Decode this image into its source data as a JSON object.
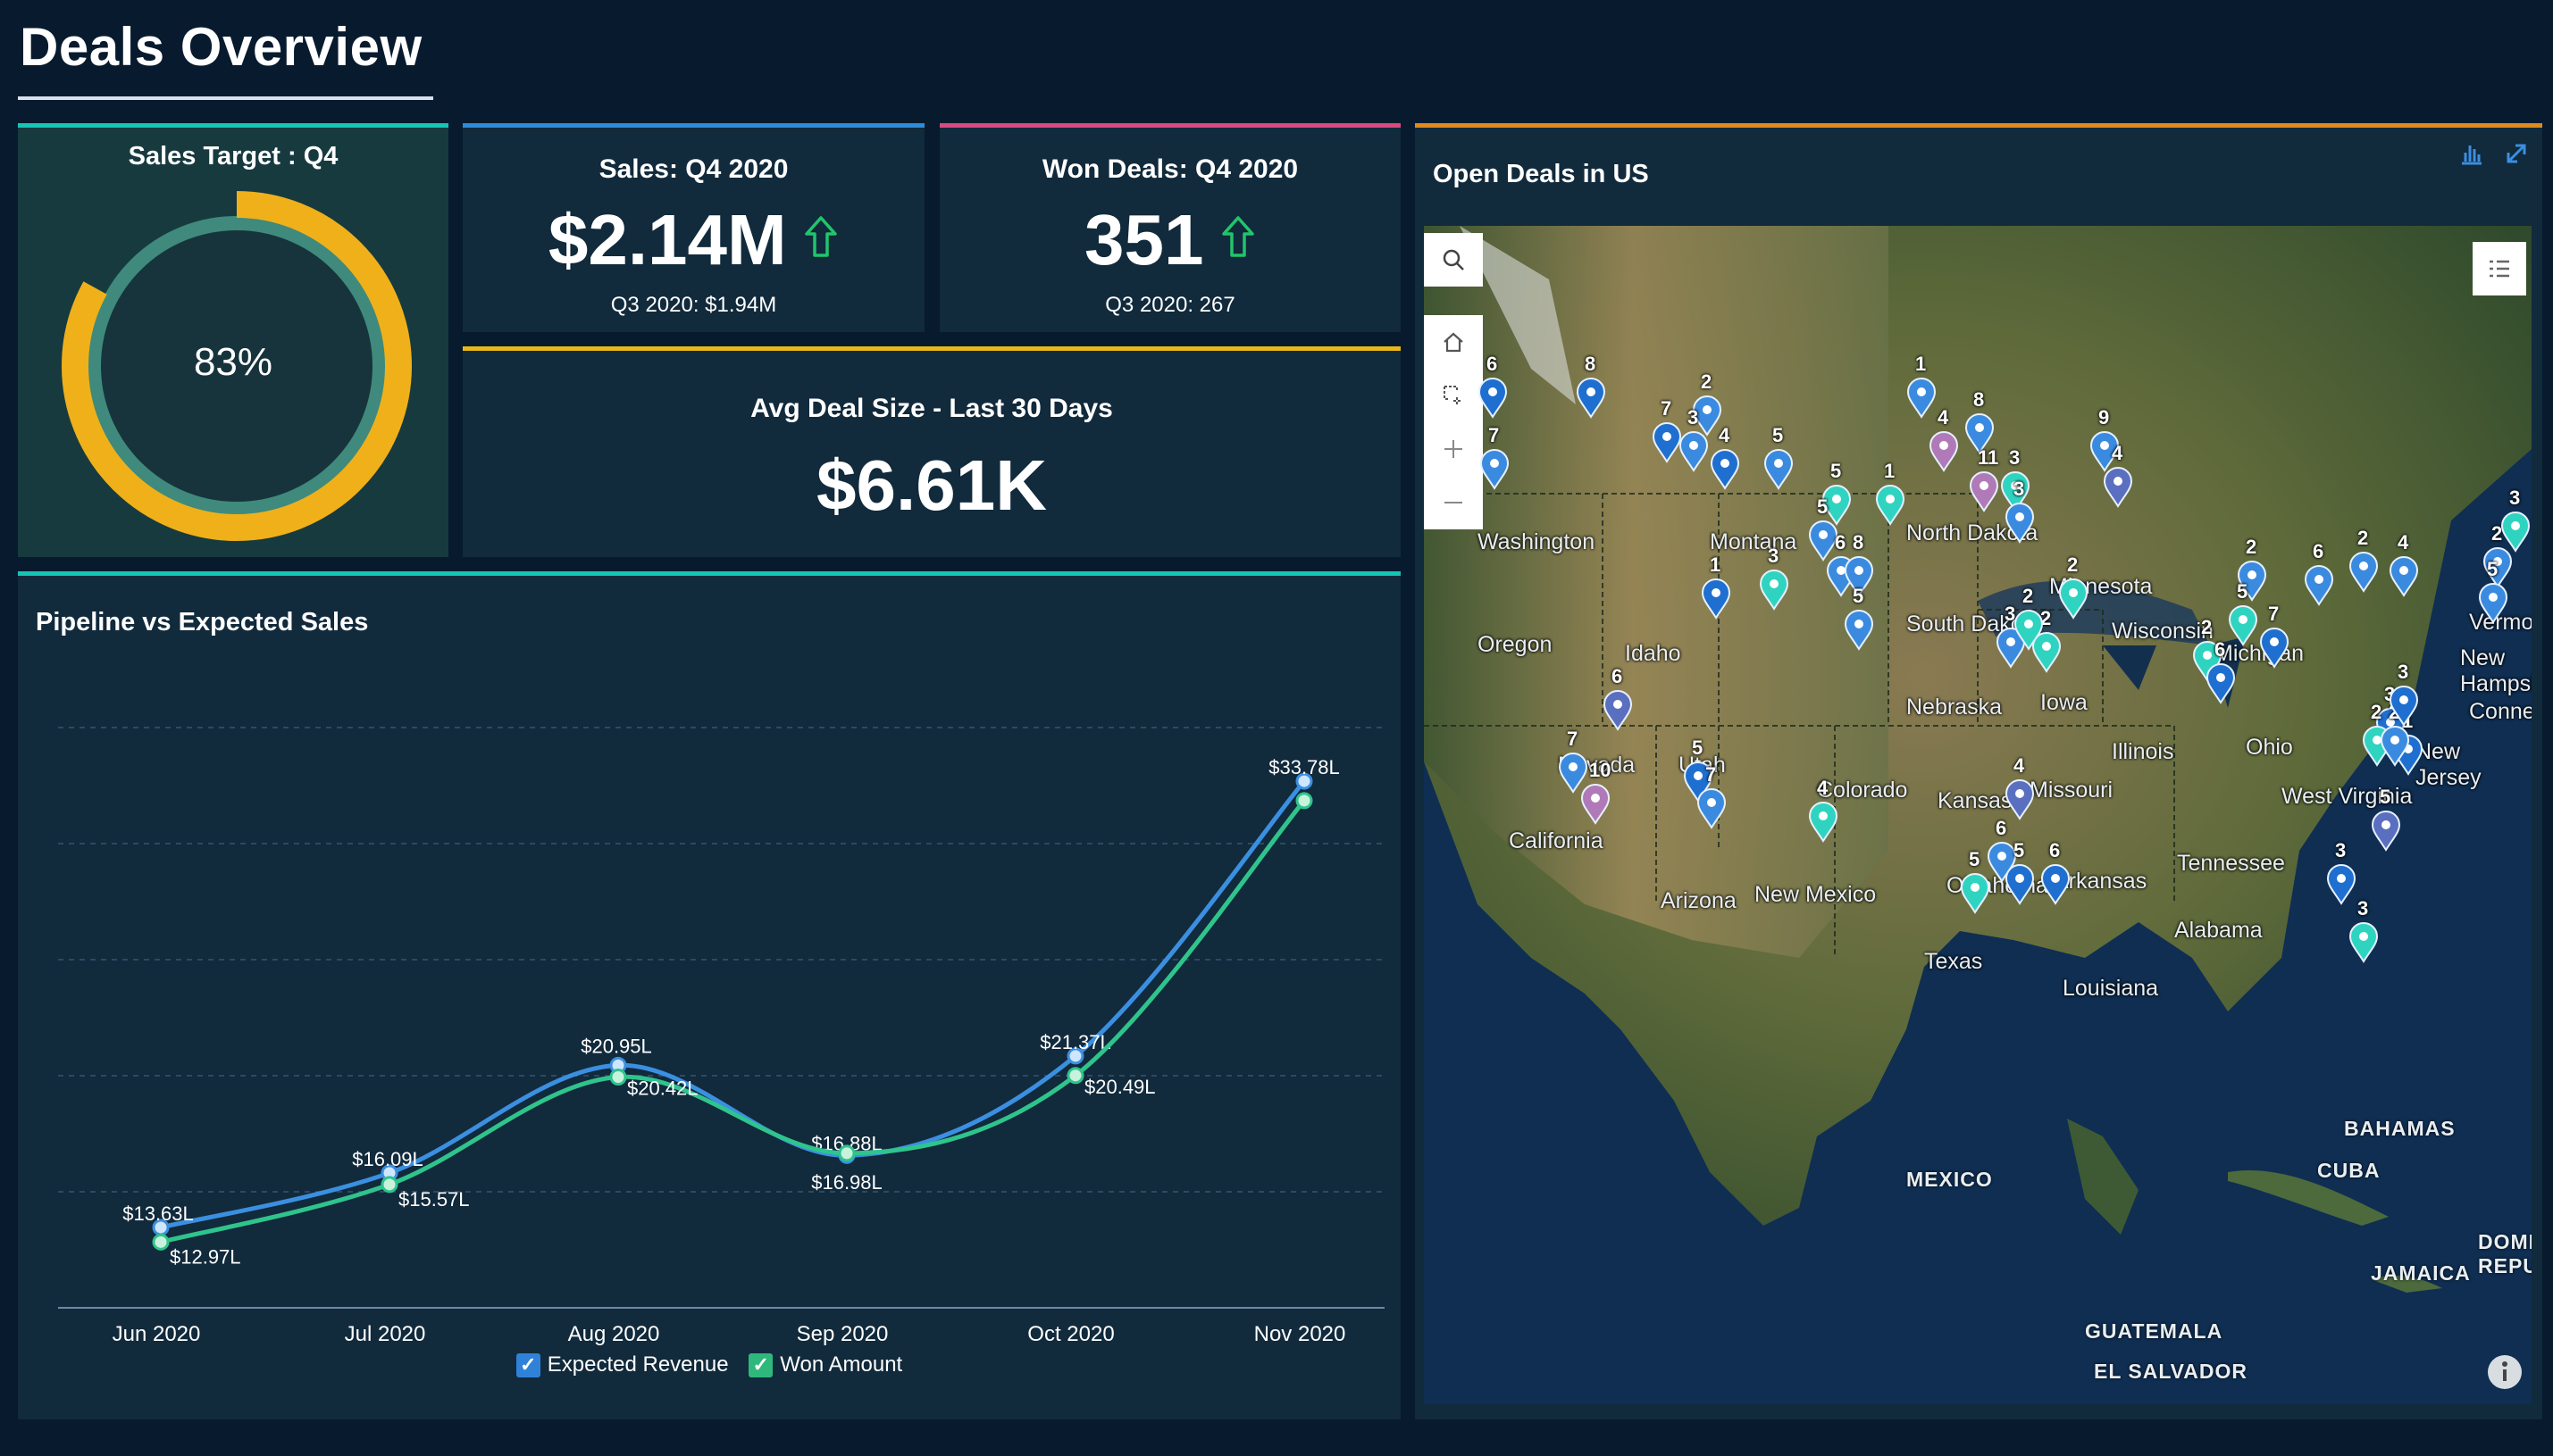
{
  "header": {
    "title": "Deals Overview"
  },
  "sales_target": {
    "title": "Sales Target : Q4",
    "percent_label": "83%",
    "percent": 0.83,
    "colors": {
      "arc": "#f0b01a",
      "ring": "#3f8a7c",
      "inner": "#17343c"
    }
  },
  "kpis": {
    "sales": {
      "title": "Sales: Q4 2020",
      "value": "$2.14M",
      "sub": "Q3 2020: $1.94M",
      "trend": "up-arrow-icon"
    },
    "won": {
      "title": "Won Deals: Q4 2020",
      "value": "351",
      "sub": "Q3 2020: 267",
      "trend": "up-arrow-icon"
    },
    "avg": {
      "title": "Avg Deal Size - Last 30 Days",
      "value": "$6.61K"
    }
  },
  "chart": {
    "heading": "Pipeline vs Expected Sales",
    "legend": {
      "expected": "Expected Revenue",
      "won": "Won Amount"
    }
  },
  "chart_data": {
    "type": "line",
    "title": "Pipeline vs Expected Sales",
    "categories": [
      "Jun 2020",
      "Jul 2020",
      "Aug 2020",
      "Sep 2020",
      "Oct 2020",
      "Nov 2020"
    ],
    "series": [
      {
        "name": "Expected Revenue",
        "color": "#3b8fe0",
        "values": [
          13.63,
          16.09,
          20.95,
          16.88,
          21.37,
          33.78
        ],
        "labels": [
          "$13.63L",
          "$16.09L",
          "$20.95L",
          "$16.88L",
          "$21.37L",
          "$33.78L"
        ]
      },
      {
        "name": "Won Amount",
        "color": "#2fc48c",
        "values": [
          12.97,
          15.57,
          20.42,
          16.98,
          20.49,
          32.9
        ],
        "labels": [
          "$12.97L",
          "$15.57L",
          "$20.42L",
          "$16.98L",
          "$20.49L",
          ""
        ]
      }
    ],
    "ylim": [
      10,
      36
    ],
    "grid": true,
    "legend_position": "bottom"
  },
  "map": {
    "heading": "Open Deals in US",
    "state_labels": [
      "Washington",
      "Oregon",
      "Idaho",
      "Montana",
      "North Dakota",
      "South Dakota",
      "Minnesota",
      "Wisconsin",
      "Michigan",
      "Nevada",
      "Utah",
      "Colorado",
      "Nebraska",
      "Iowa",
      "Illinois",
      "Ohio",
      "Kansas",
      "Missouri",
      "California",
      "New Mexico",
      "Oklahoma",
      "Arkansas",
      "Tennessee",
      "Arizona",
      "Texas",
      "Alabama",
      "Louisiana",
      "West Virginia",
      "New Jersey",
      "Vermont",
      "New Hampshire",
      "Connecticut"
    ],
    "country_labels": [
      "MEXICO",
      "CUBA",
      "BAHAMAS",
      "JAMAICA",
      "GUATEMALA",
      "EL SALVADOR",
      "DOMINICAN REPUBLIC"
    ],
    "pins": [
      {
        "count": "6",
        "color": "#1e6fd0"
      },
      {
        "count": "7",
        "color": "#3a8be0"
      },
      {
        "count": "8",
        "color": "#1e6fd0"
      },
      {
        "count": "7",
        "color": "#1e6fd0"
      },
      {
        "count": "2",
        "color": "#3a8be0"
      },
      {
        "count": "3",
        "color": "#3a8be0"
      },
      {
        "count": "4",
        "color": "#1e6fd0"
      },
      {
        "count": "5",
        "color": "#3a8be0"
      },
      {
        "count": "1",
        "color": "#3a8be0"
      },
      {
        "count": "4",
        "color": "#b07ab8"
      },
      {
        "count": "8",
        "color": "#3a8be0"
      },
      {
        "count": "11",
        "color": "#b07ab8"
      },
      {
        "count": "3",
        "color": "#2fd4c0"
      },
      {
        "count": "3",
        "color": "#3a8be0"
      },
      {
        "count": "9",
        "color": "#3a8be0"
      },
      {
        "count": "4",
        "color": "#5b6fc0"
      },
      {
        "count": "5",
        "color": "#2fd4c0"
      },
      {
        "count": "1",
        "color": "#2fd4c0"
      },
      {
        "count": "5",
        "color": "#3a8be0"
      },
      {
        "count": "6",
        "color": "#3a8be0"
      },
      {
        "count": "8",
        "color": "#3a8be0"
      },
      {
        "count": "3",
        "color": "#2fd4c0"
      },
      {
        "count": "1",
        "color": "#1e6fd0"
      },
      {
        "count": "5",
        "color": "#3a8be0"
      },
      {
        "count": "2",
        "color": "#2fd4c0"
      },
      {
        "count": "3",
        "color": "#3a8be0"
      },
      {
        "count": "2",
        "color": "#2fd4c0"
      },
      {
        "count": "2",
        "color": "#3a8be0"
      },
      {
        "count": "6",
        "color": "#3a8be0"
      },
      {
        "count": "5",
        "color": "#2fd4c0"
      },
      {
        "count": "2",
        "color": "#3a8be0"
      },
      {
        "count": "4",
        "color": "#3a8be0"
      },
      {
        "count": "2",
        "color": "#3a8be0"
      },
      {
        "count": "5",
        "color": "#3a8be0"
      },
      {
        "count": "7",
        "color": "#1e6fd0"
      },
      {
        "count": "2",
        "color": "#2fd4c0"
      },
      {
        "count": "6",
        "color": "#1e6fd0"
      },
      {
        "count": "3",
        "color": "#1e6fd0"
      },
      {
        "count": "2",
        "color": "#2fd4c0"
      },
      {
        "count": "1",
        "color": "#1e6fd0"
      },
      {
        "count": "3",
        "color": "#2fd4c0"
      },
      {
        "count": "2",
        "color": "#2fd4c0"
      },
      {
        "count": "6",
        "color": "#5b6fc0"
      },
      {
        "count": "7",
        "color": "#3a8be0"
      },
      {
        "count": "10",
        "color": "#b07ab8"
      },
      {
        "count": "5",
        "color": "#1e6fd0"
      },
      {
        "count": "7",
        "color": "#3a8be0"
      },
      {
        "count": "4",
        "color": "#2fd4c0"
      },
      {
        "count": "4",
        "color": "#5b6fc0"
      },
      {
        "count": "6",
        "color": "#3a8be0"
      },
      {
        "count": "5",
        "color": "#2fd4c0"
      },
      {
        "count": "5",
        "color": "#1e6fd0"
      },
      {
        "count": "6",
        "color": "#1e6fd0"
      },
      {
        "count": "3",
        "color": "#1e6fd0"
      },
      {
        "count": "3",
        "color": "#2fd4c0"
      },
      {
        "count": "5",
        "color": "#5b6fc0"
      },
      {
        "count": "2",
        "color": "#3a8be0"
      },
      {
        "count": "3",
        "color": "#1e6fd0"
      }
    ]
  }
}
